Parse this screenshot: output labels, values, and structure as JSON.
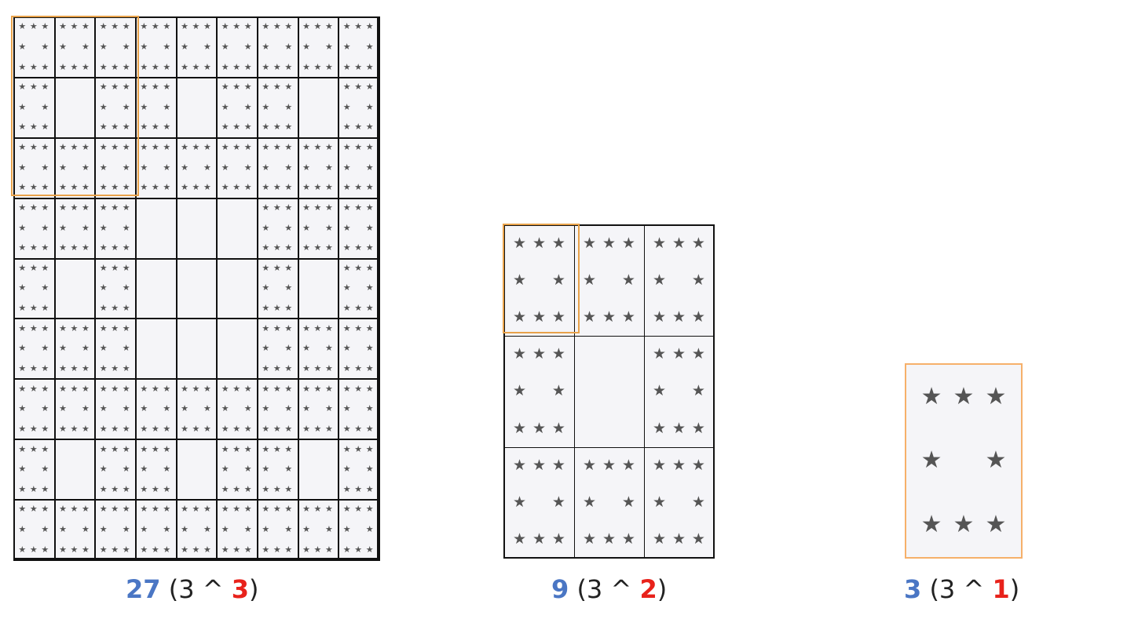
{
  "cell_symbol": "★",
  "colors": {
    "count": "#4a76c4",
    "exponent": "#e8221b",
    "highlight": "#e8a24a",
    "grid_line": "#111111",
    "cell_fill": "#f5f5f8",
    "star": "#555555"
  },
  "panels": [
    {
      "id": "level-3",
      "order": 3,
      "caption": {
        "count": "27",
        "open": "(3 ^ ",
        "exponent": "3",
        "close": ")"
      }
    },
    {
      "id": "level-2",
      "order": 2,
      "caption": {
        "count": "9",
        "open": "(3 ^ ",
        "exponent": "2",
        "close": ")"
      }
    },
    {
      "id": "level-1",
      "order": 1,
      "caption": {
        "count": "3",
        "open": "(3 ^ ",
        "exponent": "1",
        "close": ")"
      }
    }
  ]
}
